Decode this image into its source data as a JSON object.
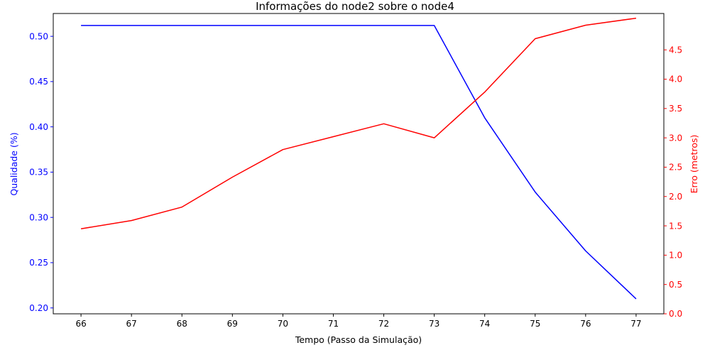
{
  "chart_data": {
    "type": "line",
    "title": "Informações do node2 sobre o node4",
    "xlabel": "Tempo (Passo da Simulação)",
    "x": [
      66,
      67,
      68,
      69,
      70,
      71,
      72,
      73,
      74,
      75,
      76,
      77
    ],
    "xticks": [
      "66",
      "67",
      "68",
      "69",
      "70",
      "71",
      "72",
      "73",
      "74",
      "75",
      "76",
      "77"
    ],
    "xlim": [
      65.45,
      77.55
    ],
    "y_left": {
      "label": "Qualidade (%)",
      "color": "#0000ff",
      "ylim": [
        0.1935,
        0.5252
      ],
      "ticks": [
        0.2,
        0.25,
        0.3,
        0.35,
        0.4,
        0.45,
        0.5
      ],
      "tick_labels": [
        "0.20",
        "0.25",
        "0.30",
        "0.35",
        "0.40",
        "0.45",
        "0.50"
      ]
    },
    "y_right": {
      "label": "Erro (metros)",
      "color": "#ff0000",
      "ylim": [
        0.0,
        5.12
      ],
      "ticks": [
        0.0,
        0.5,
        1.0,
        1.5,
        2.0,
        2.5,
        3.0,
        3.5,
        4.0,
        4.5
      ],
      "tick_labels": [
        "0.0",
        "0.5",
        "1.0",
        "1.5",
        "2.0",
        "2.5",
        "3.0",
        "3.5",
        "4.0",
        "4.5"
      ]
    },
    "series": [
      {
        "axis": "left",
        "color": "#0000ff",
        "values": [
          0.512,
          0.512,
          0.512,
          0.512,
          0.512,
          0.512,
          0.512,
          0.512,
          0.41,
          0.328,
          0.263,
          0.21
        ]
      },
      {
        "axis": "right",
        "color": "#ff0000",
        "values": [
          1.45,
          1.59,
          1.82,
          2.33,
          2.8,
          3.02,
          3.24,
          3.0,
          3.78,
          4.69,
          4.92,
          5.04
        ]
      }
    ],
    "grid": false,
    "legend": "none"
  }
}
